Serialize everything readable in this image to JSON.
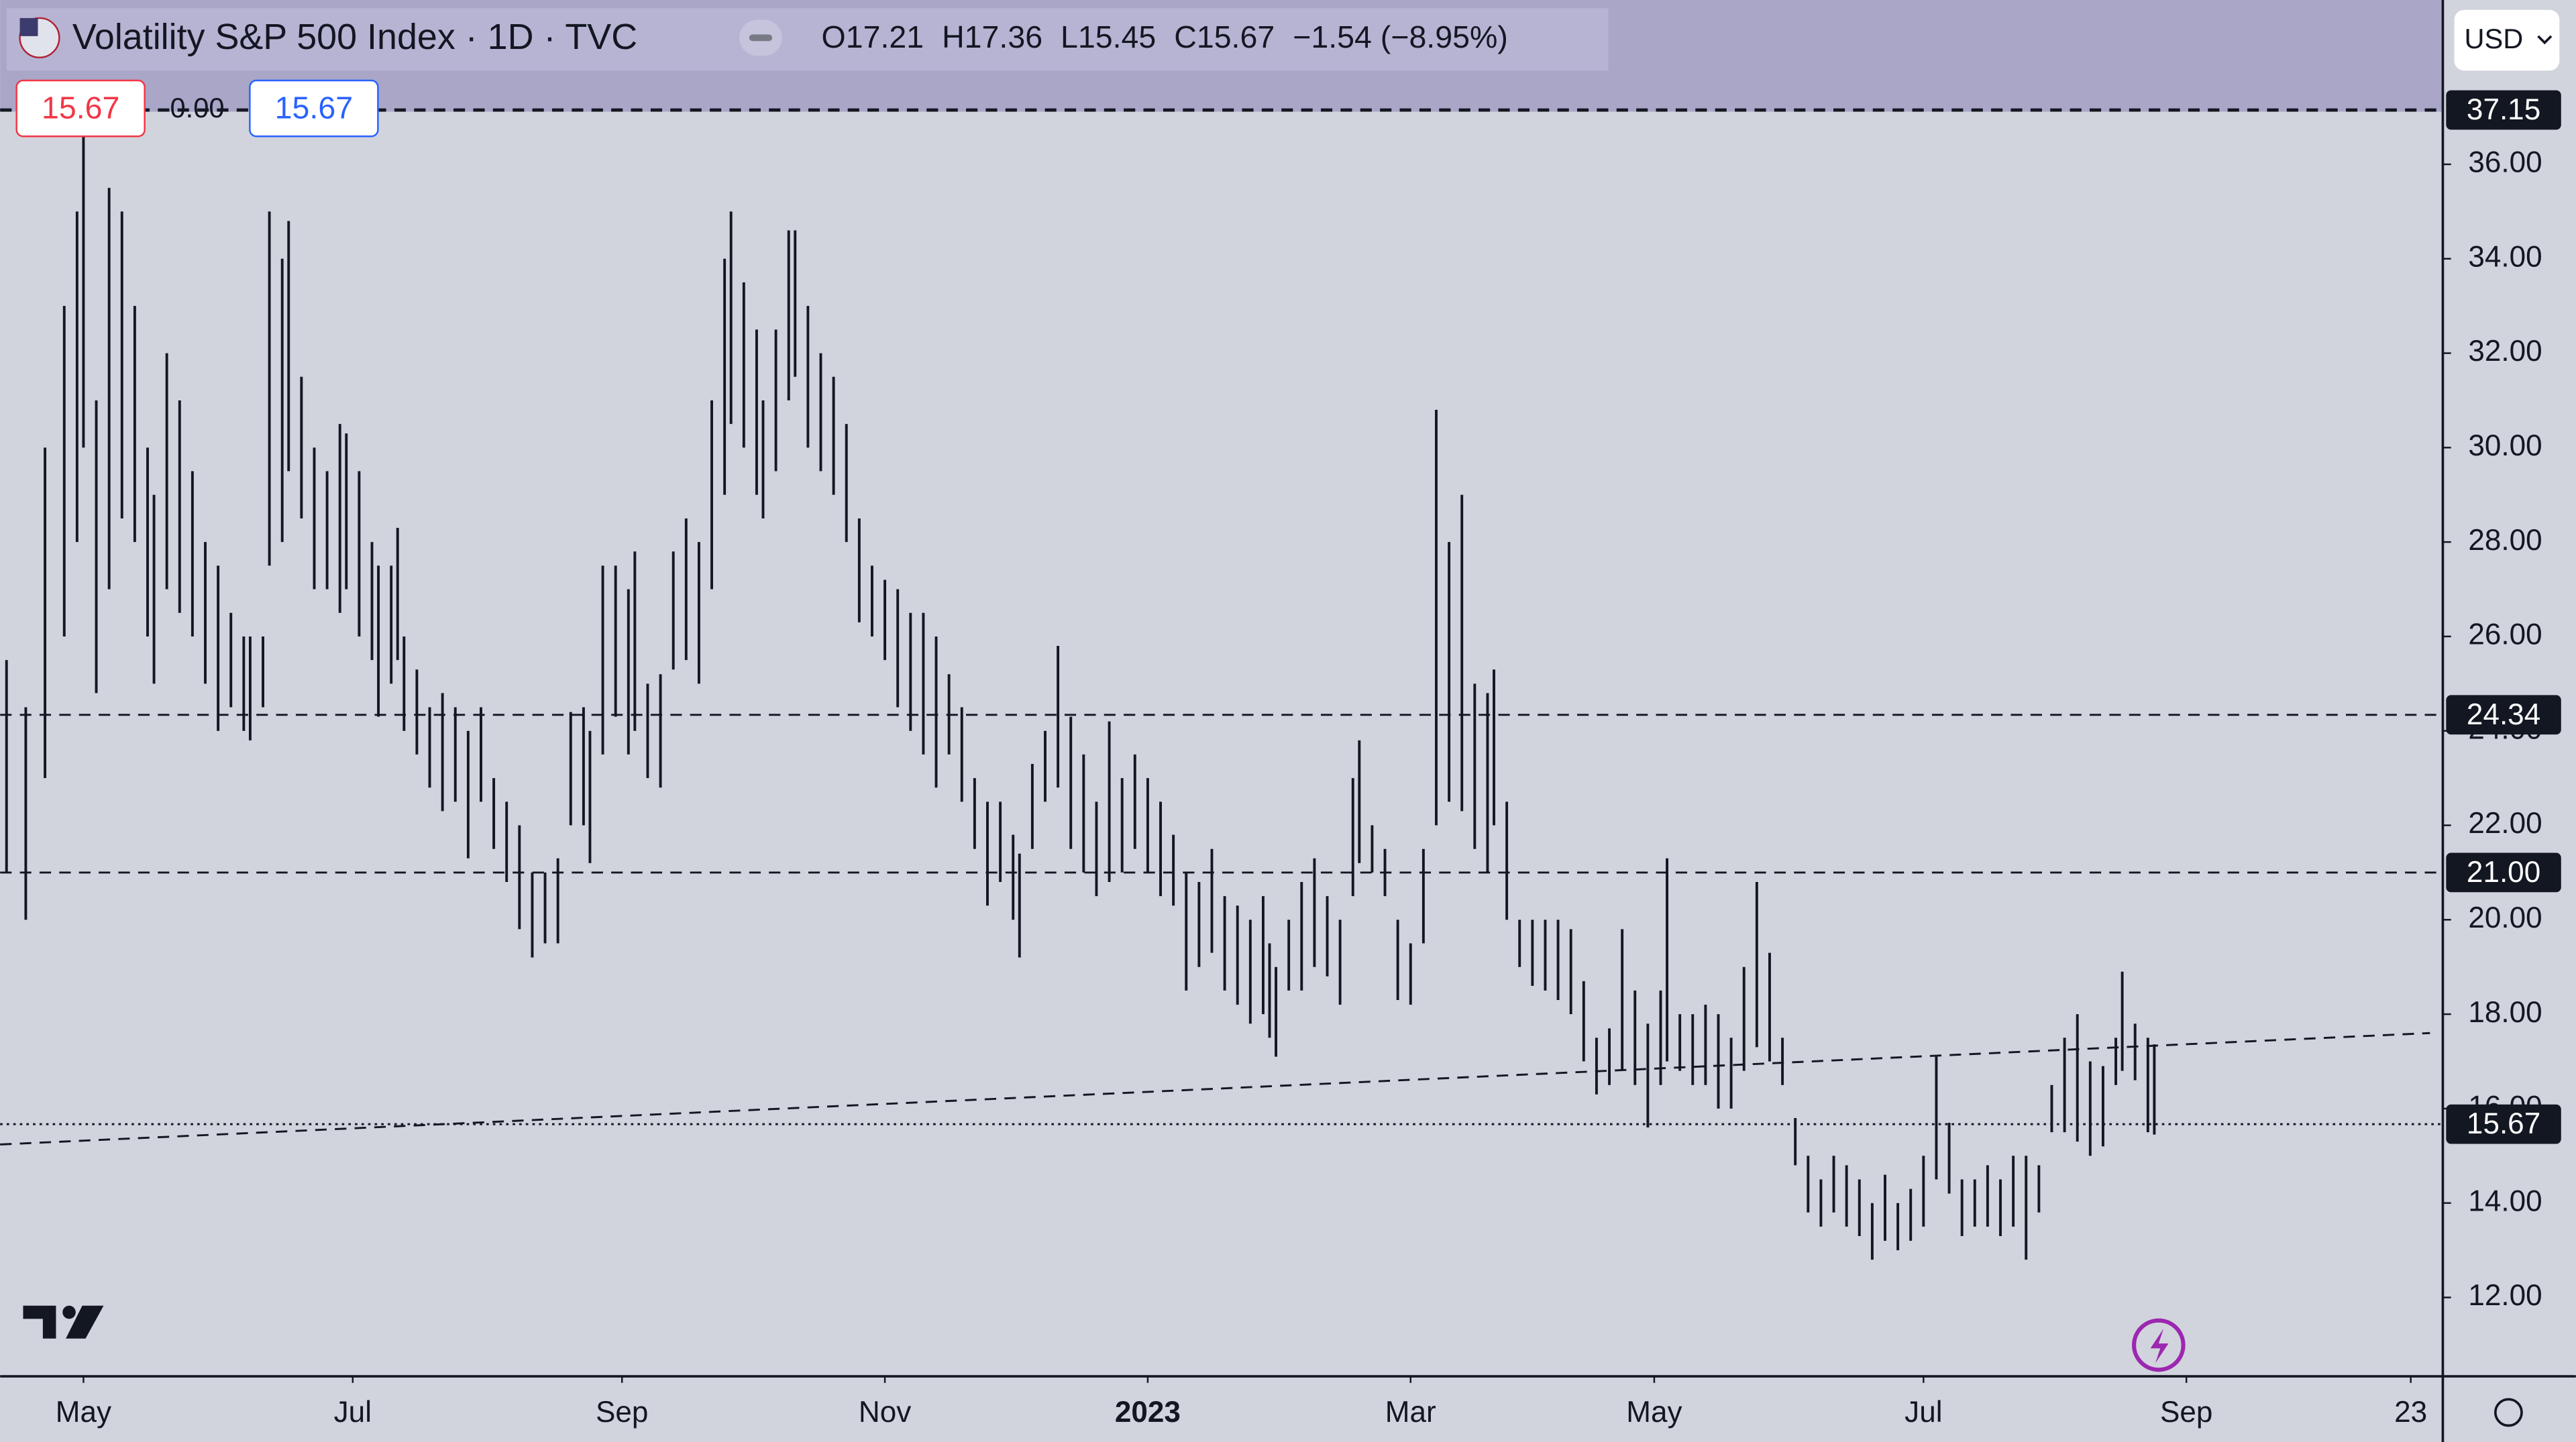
{
  "chart_data": {
    "type": "ohlc",
    "legend": {
      "title": "Volatility S&P 500 Index · 1D · TVC",
      "ohlc": [
        "O17.21",
        "H17.36",
        "L15.45",
        "C15.67",
        "−1.54 (−8.95%)"
      ],
      "bid": 15.67,
      "spread": {
        "value": 0,
        "label": "0.00"
      },
      "ask": 15.67
    },
    "currency": "USD",
    "color": "#131722",
    "x": [
      1,
      4,
      7,
      10,
      12,
      13,
      15,
      17,
      19,
      21,
      23,
      24,
      26,
      28,
      30,
      32,
      34,
      36,
      38,
      39,
      41,
      42,
      44,
      45,
      47,
      49,
      51,
      53,
      54,
      56,
      58,
      59,
      61,
      62,
      63,
      65,
      67,
      69,
      71,
      73,
      75,
      77,
      79,
      81,
      83,
      85,
      87,
      89,
      91,
      92,
      94,
      96,
      98,
      99,
      101,
      103,
      105,
      107,
      109,
      111,
      113,
      114,
      116,
      118,
      119,
      121,
      123,
      124,
      126,
      128,
      130,
      132,
      134,
      136,
      138,
      140,
      142,
      144,
      146,
      148,
      150,
      152,
      154,
      156,
      158,
      159,
      161,
      163,
      165,
      167,
      169,
      171,
      173,
      175,
      177,
      179,
      181,
      183,
      185,
      187,
      189,
      191,
      193,
      195,
      197,
      198,
      199,
      201,
      203,
      205,
      207,
      209,
      211,
      212,
      214,
      216,
      218,
      220,
      222,
      224,
      226,
      228,
      230,
      232,
      233,
      235,
      237,
      239,
      241,
      243,
      245,
      247,
      249,
      251,
      253,
      255,
      257,
      259,
      260,
      262,
      264,
      266,
      268,
      270,
      272,
      274,
      276,
      278,
      280,
      282,
      284,
      286,
      288,
      290,
      292,
      294,
      296,
      298,
      300,
      302,
      304,
      306,
      308,
      310,
      312,
      314,
      316,
      318,
      320,
      322,
      324,
      326,
      328,
      330,
      331,
      333,
      335,
      336
    ],
    "low": [
      21,
      20,
      23,
      26,
      28,
      30,
      24.8,
      27,
      28.5,
      28,
      26,
      25,
      27,
      26.5,
      26,
      25,
      24,
      24.5,
      24,
      23.8,
      24.5,
      27.5,
      28,
      29.5,
      28.5,
      27,
      27,
      26.5,
      27,
      26,
      25.5,
      24.3,
      25,
      25.5,
      24,
      23.5,
      22.8,
      22.3,
      22.5,
      21.3,
      22.5,
      21.5,
      20.8,
      19.8,
      19.2,
      19.5,
      19.5,
      22,
      22,
      21.2,
      23.5,
      24.3,
      23.5,
      24,
      23,
      22.8,
      25.3,
      25.5,
      25,
      27,
      29,
      30.5,
      30,
      29,
      28.5,
      29.5,
      31,
      31.5,
      30,
      29.5,
      29,
      28,
      26.3,
      26,
      25.5,
      24.5,
      24,
      23.5,
      22.8,
      23.5,
      22.5,
      21.5,
      20.3,
      20.8,
      20,
      19.2,
      21.5,
      22.5,
      22.8,
      21.5,
      21,
      20.5,
      20.8,
      21,
      21.5,
      21,
      20.5,
      20.3,
      18.5,
      19,
      19.3,
      18.5,
      18.2,
      17.8,
      18,
      17.5,
      17.1,
      18.5,
      18.5,
      19,
      18.8,
      18.2,
      20.5,
      21.2,
      21,
      20.5,
      18.3,
      18.2,
      19.5,
      22,
      22.5,
      22.3,
      21.5,
      21,
      22,
      20,
      19,
      18.6,
      18.5,
      18.3,
      18,
      17,
      16.3,
      16.5,
      16.8,
      16.5,
      15.6,
      16.5,
      17,
      16.8,
      16.5,
      16.5,
      16,
      16,
      16.8,
      17.3,
      17,
      16.5,
      14.8,
      13.8,
      13.5,
      13.8,
      13.5,
      13.3,
      12.8,
      13.2,
      13,
      13.2,
      13.5,
      14.5,
      14.2,
      13.3,
      13.5,
      13.5,
      13.3,
      13.5,
      12.8,
      13.8,
      15.5,
      15.5,
      15.3,
      15,
      15.2,
      16.5,
      16.8,
      16.6,
      15.5,
      15.45
    ],
    "high": [
      25.5,
      24.5,
      30,
      33,
      35,
      37.1,
      31,
      35.5,
      35,
      33,
      30,
      29,
      32,
      31,
      29.5,
      28,
      27.5,
      26.5,
      26,
      26,
      26,
      35,
      34,
      34.8,
      31.5,
      30,
      29.5,
      30.5,
      30.3,
      29.5,
      28,
      27.5,
      27.5,
      28.3,
      26,
      25.3,
      24.5,
      24.8,
      24.5,
      24,
      24.5,
      23,
      22.5,
      22,
      21,
      21,
      21.3,
      24.4,
      24.5,
      24,
      27.5,
      27.5,
      27,
      27.8,
      25,
      25.2,
      27.8,
      28.5,
      28,
      31,
      34,
      35,
      33.5,
      32.5,
      31,
      32.5,
      34.6,
      34.6,
      33,
      32,
      31.5,
      30.5,
      28.5,
      27.5,
      27.2,
      27,
      26.5,
      26.5,
      26,
      25.2,
      24.5,
      23,
      22.5,
      22.5,
      21.8,
      21.4,
      23.3,
      24,
      25.8,
      24.3,
      23.5,
      22.5,
      24.2,
      23,
      23.5,
      23,
      22.5,
      21.8,
      21,
      20.8,
      21.5,
      20.5,
      20.3,
      20,
      20.5,
      19.5,
      19,
      20,
      20.8,
      21.3,
      20.5,
      20,
      23,
      23.8,
      22,
      21.5,
      20,
      19.5,
      21.5,
      30.8,
      28,
      29,
      25,
      24.8,
      25.3,
      22.5,
      20,
      20,
      20,
      20,
      19.8,
      18.7,
      17.5,
      17.7,
      19.8,
      18.5,
      17.8,
      18.5,
      21.3,
      18,
      18,
      18.2,
      18,
      17.5,
      19,
      20.8,
      19.3,
      17.5,
      15.8,
      15,
      14.5,
      15,
      14.8,
      14.5,
      14,
      14.6,
      14,
      14.3,
      15,
      17.1,
      15.7,
      14.5,
      14.5,
      14.8,
      14.5,
      15,
      15,
      14.8,
      16.5,
      17.5,
      18,
      17,
      16.9,
      17.5,
      18.9,
      17.8,
      17.5,
      17.36
    ],
    "xlim": [
      0,
      381
    ],
    "xticks": [
      {
        "value": 13,
        "label": "May"
      },
      {
        "value": 55,
        "label": "Jul"
      },
      {
        "value": 97,
        "label": "Sep"
      },
      {
        "value": 138,
        "label": "Nov"
      },
      {
        "value": 179,
        "label": "2023"
      },
      {
        "value": 220,
        "label": "Mar"
      },
      {
        "value": 258,
        "label": "May"
      },
      {
        "value": 300,
        "label": "Jul"
      },
      {
        "value": 341,
        "label": "Sep"
      },
      {
        "value": 376,
        "label": "23"
      }
    ],
    "ylim": [
      10.33,
      39.48
    ],
    "yticks": [
      {
        "value": 12,
        "label": "12.00"
      },
      {
        "value": 14,
        "label": "14.00"
      },
      {
        "value": 16,
        "label": "16.00"
      },
      {
        "value": 18,
        "label": "18.00"
      },
      {
        "value": 20,
        "label": "20.00"
      },
      {
        "value": 22,
        "label": "22.00"
      },
      {
        "value": 24,
        "label": "24.00"
      },
      {
        "value": 26,
        "label": "26.00"
      },
      {
        "value": 28,
        "label": "28.00"
      },
      {
        "value": 30,
        "label": "30.00"
      },
      {
        "value": 32,
        "label": "32.00"
      },
      {
        "value": 34,
        "label": "34.00"
      },
      {
        "value": 36,
        "label": "36.00"
      }
    ],
    "hlines": [
      {
        "price": 37.15,
        "style": "dashed"
      },
      {
        "price": 24.34,
        "style": "dashed"
      },
      {
        "price": {
          "value": 21,
          "label": "21.00"
        },
        "style": "dashed"
      },
      {
        "price": 15.67,
        "style": "dotted"
      }
    ],
    "trend_line": {
      "x": [
        0,
        379
      ],
      "y": [
        15.24,
        17.6
      ]
    }
  }
}
